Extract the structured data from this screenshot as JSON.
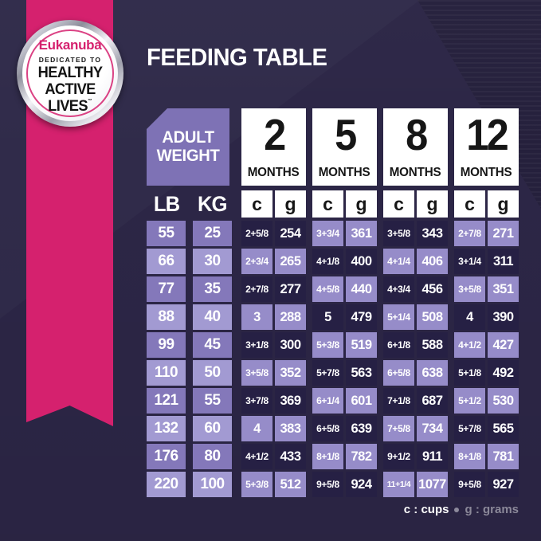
{
  "colors": {
    "background": "#2c2646",
    "ribbon_pink": "#d5216e",
    "header_purple": "#7e72b5",
    "cell_light_purple": "#968cc9",
    "cell_dark_navy": "#262044",
    "lb_kg_medium": "#8478ba",
    "lb_kg_light": "#a29ad2",
    "white_box": "#ffffff",
    "muted_text": "#8b8899"
  },
  "badge": {
    "brand": "Eukanuba",
    "dedication": "DEDICATED TO",
    "headline_lines": [
      "HEALTHY",
      "ACTIVE",
      "LIVES"
    ],
    "trademark": "™"
  },
  "title": "FEEDING TABLE",
  "table": {
    "corner_label_line1": "ADULT",
    "corner_label_line2": "WEIGHT",
    "weight_cols": [
      "LB",
      "KG"
    ],
    "months": [
      "2",
      "5",
      "8",
      "12"
    ],
    "months_label": "MONTHS",
    "unit_cols": [
      "c",
      "g"
    ]
  },
  "footer": {
    "cups_legend": "c : cups",
    "grams_legend": "g : grams"
  },
  "chart_data": {
    "type": "table",
    "title": "FEEDING TABLE",
    "columns": [
      "Adult weight LB",
      "Adult weight KG",
      "2 months cups",
      "2 months grams",
      "5 months cups",
      "5 months grams",
      "8 months cups",
      "8 months grams",
      "12 months cups",
      "12 months grams"
    ],
    "rows": [
      [
        "55",
        "25",
        "2+5/8",
        "254",
        "3+3/4",
        "361",
        "3+5/8",
        "343",
        "2+7/8",
        "271"
      ],
      [
        "66",
        "30",
        "2+3/4",
        "265",
        "4+1/8",
        "400",
        "4+1/4",
        "406",
        "3+1/4",
        "311"
      ],
      [
        "77",
        "35",
        "2+7/8",
        "277",
        "4+5/8",
        "440",
        "4+3/4",
        "456",
        "3+5/8",
        "351"
      ],
      [
        "88",
        "40",
        "3",
        "288",
        "5",
        "479",
        "5+1/4",
        "508",
        "4",
        "390"
      ],
      [
        "99",
        "45",
        "3+1/8",
        "300",
        "5+3/8",
        "519",
        "6+1/8",
        "588",
        "4+1/2",
        "427"
      ],
      [
        "110",
        "50",
        "3+5/8",
        "352",
        "5+7/8",
        "563",
        "6+5/8",
        "638",
        "5+1/8",
        "492"
      ],
      [
        "121",
        "55",
        "3+7/8",
        "369",
        "6+1/4",
        "601",
        "7+1/8",
        "687",
        "5+1/2",
        "530"
      ],
      [
        "132",
        "60",
        "4",
        "383",
        "6+5/8",
        "639",
        "7+5/8",
        "734",
        "5+7/8",
        "565"
      ],
      [
        "176",
        "80",
        "4+1/2",
        "433",
        "8+1/8",
        "782",
        "9+1/2",
        "911",
        "8+1/8",
        "781"
      ],
      [
        "220",
        "100",
        "5+3/8",
        "512",
        "9+5/8",
        "924",
        "11+1/4",
        "1077",
        "9+5/8",
        "927"
      ]
    ],
    "legend": "c : cups • g : grams"
  }
}
